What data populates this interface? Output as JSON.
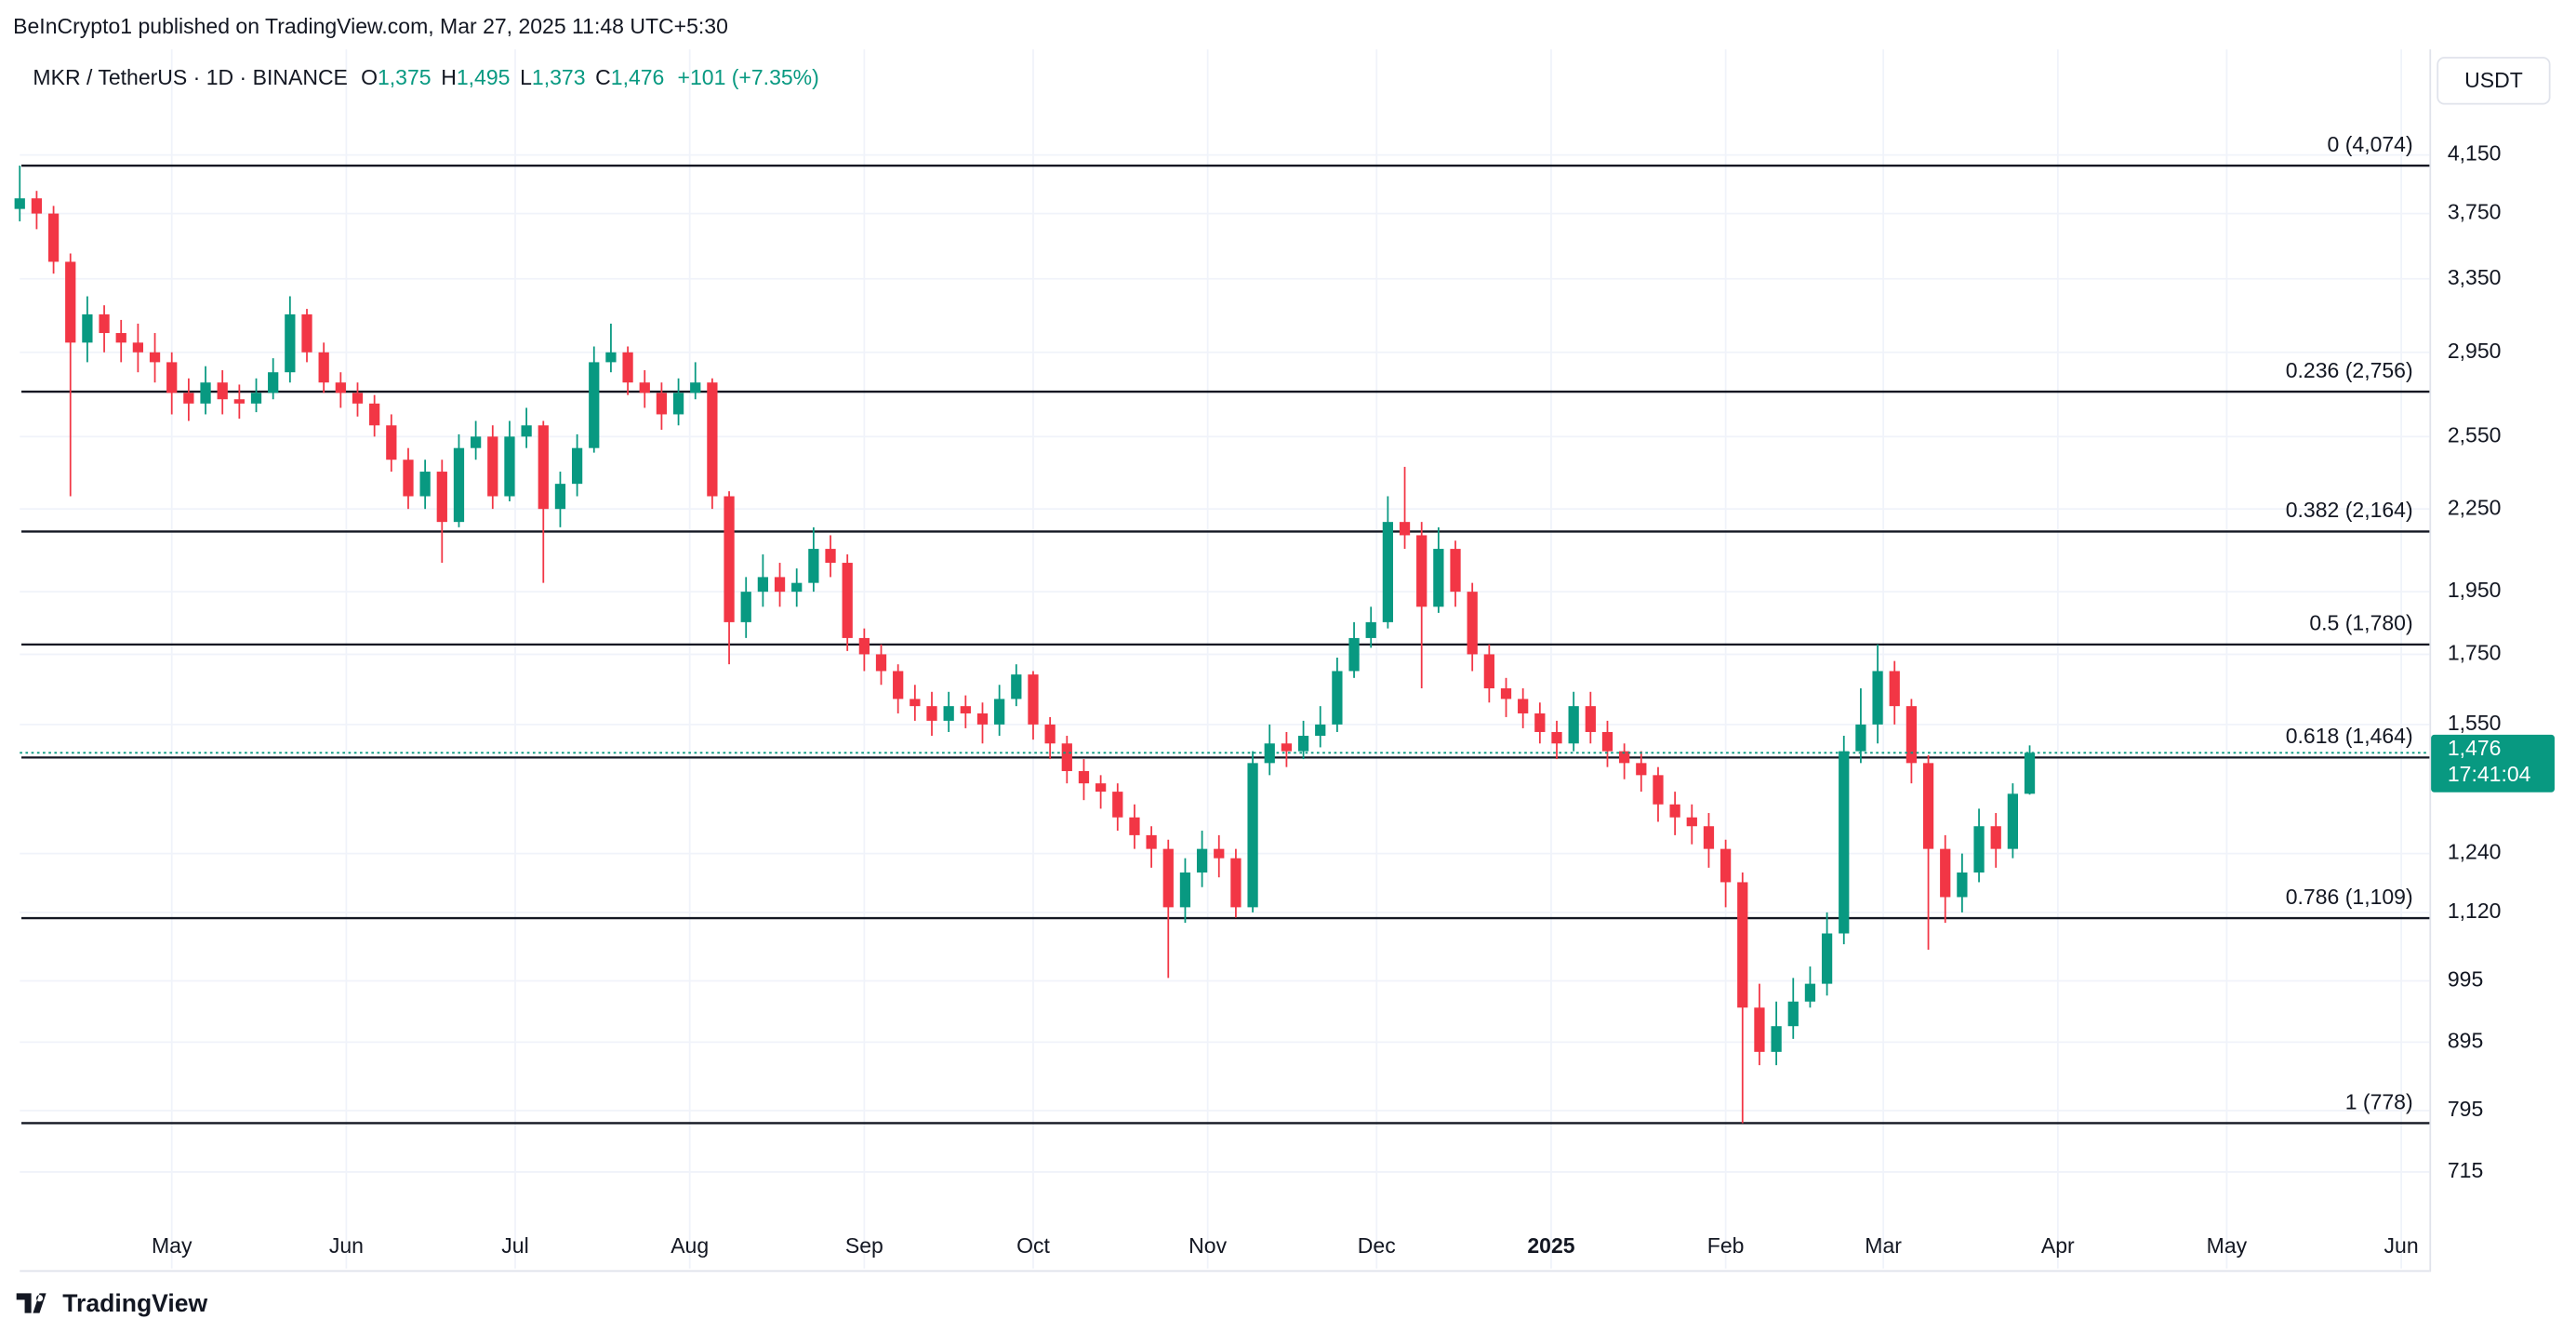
{
  "header": {
    "attribution": "BeInCrypto1 published on TradingView.com, Mar 27, 2025 11:48 UTC+5:30"
  },
  "chart_data": {
    "type": "candlestick",
    "symbol": "MKR / TetherUS · 1D · BINANCE",
    "legend_values": [
      {
        "label": "O",
        "value": "1,375"
      },
      {
        "label": "H",
        "value": "1,495"
      },
      {
        "label": "L",
        "value": "1,373"
      },
      {
        "label": "C",
        "value": "1,476"
      }
    ],
    "change": "+101 (+7.35%)",
    "currency": "USDT",
    "up_color": "#089981",
    "down_color": "#f23645",
    "x": [
      0,
      3,
      6,
      9,
      12,
      15,
      18,
      21,
      24,
      27,
      30,
      33,
      36,
      39,
      42,
      45,
      48,
      51,
      54,
      57,
      60,
      63,
      66,
      69,
      72,
      75,
      78,
      81,
      84,
      87,
      90,
      93,
      96,
      99,
      102,
      105,
      108,
      111,
      114,
      117,
      120,
      123,
      126,
      129,
      132,
      135,
      138,
      141,
      144,
      147,
      150,
      153,
      156,
      159,
      162,
      165,
      168,
      171,
      174,
      177,
      180,
      183,
      186,
      189,
      192,
      195,
      198,
      201,
      204,
      207,
      210,
      213,
      216,
      219,
      222,
      225,
      228,
      231,
      234,
      237,
      240,
      243,
      246,
      249,
      252,
      255,
      258,
      261,
      264,
      267,
      270,
      273,
      276,
      279,
      282,
      285,
      288,
      291,
      294,
      297,
      300,
      303,
      306,
      309,
      312,
      315,
      318,
      321,
      324,
      327,
      330,
      333,
      336,
      339,
      342,
      345,
      348,
      351,
      354,
      357
    ],
    "open": [
      3780,
      3850,
      3750,
      3450,
      3000,
      3150,
      3050,
      3000,
      2950,
      2900,
      2750,
      2700,
      2800,
      2720,
      2700,
      2750,
      2850,
      3150,
      2950,
      2800,
      2750,
      2700,
      2600,
      2450,
      2300,
      2400,
      2200,
      2500,
      2550,
      2300,
      2550,
      2600,
      2250,
      2350,
      2500,
      2900,
      2950,
      2800,
      2750,
      2650,
      2750,
      2800,
      2300,
      1850,
      1950,
      2000,
      1950,
      1980,
      2100,
      2050,
      1800,
      1750,
      1700,
      1620,
      1600,
      1560,
      1600,
      1580,
      1550,
      1620,
      1690,
      1550,
      1500,
      1430,
      1400,
      1380,
      1320,
      1280,
      1250,
      1130,
      1200,
      1250,
      1230,
      1130,
      1450,
      1500,
      1480,
      1520,
      1550,
      1700,
      1800,
      1850,
      2200,
      2150,
      1900,
      2100,
      1950,
      1750,
      1650,
      1620,
      1580,
      1530,
      1500,
      1600,
      1530,
      1480,
      1450,
      1420,
      1350,
      1320,
      1300,
      1250,
      1180,
      950,
      880,
      920,
      960,
      990,
      1080,
      1480,
      1550,
      1700,
      1600,
      1450,
      1250,
      1150,
      1200,
      1300,
      1250,
      1375
    ],
    "high": [
      4074,
      3900,
      3800,
      3500,
      3250,
      3200,
      3120,
      3100,
      3050,
      2950,
      2820,
      2880,
      2860,
      2790,
      2820,
      2920,
      3250,
      3180,
      3000,
      2850,
      2800,
      2740,
      2650,
      2500,
      2450,
      2450,
      2560,
      2620,
      2600,
      2620,
      2680,
      2620,
      2400,
      2560,
      2980,
      3100,
      2980,
      2860,
      2800,
      2820,
      2900,
      2820,
      2320,
      2000,
      2080,
      2050,
      2030,
      2180,
      2150,
      2080,
      1830,
      1780,
      1720,
      1660,
      1640,
      1640,
      1630,
      1610,
      1660,
      1720,
      1700,
      1570,
      1520,
      1460,
      1420,
      1400,
      1350,
      1300,
      1270,
      1230,
      1290,
      1280,
      1250,
      1480,
      1550,
      1530,
      1560,
      1600,
      1740,
      1850,
      1900,
      2300,
      2420,
      2200,
      2180,
      2130,
      1980,
      1780,
      1680,
      1650,
      1610,
      1560,
      1640,
      1640,
      1560,
      1500,
      1480,
      1440,
      1380,
      1350,
      1330,
      1270,
      1200,
      990,
      960,
      1000,
      1020,
      1120,
      1520,
      1650,
      1780,
      1730,
      1620,
      1470,
      1280,
      1240,
      1340,
      1330,
      1400,
      1495
    ],
    "low": [
      3700,
      3650,
      3380,
      2300,
      2900,
      2950,
      2900,
      2850,
      2800,
      2650,
      2620,
      2650,
      2650,
      2630,
      2660,
      2720,
      2800,
      2900,
      2750,
      2680,
      2640,
      2550,
      2400,
      2250,
      2250,
      2050,
      2180,
      2450,
      2250,
      2280,
      2500,
      1980,
      2180,
      2300,
      2480,
      2850,
      2740,
      2680,
      2580,
      2600,
      2720,
      2250,
      1720,
      1800,
      1900,
      1900,
      1900,
      1950,
      2000,
      1760,
      1700,
      1660,
      1580,
      1560,
      1520,
      1530,
      1540,
      1500,
      1520,
      1600,
      1510,
      1460,
      1400,
      1360,
      1340,
      1290,
      1250,
      1210,
      1000,
      1100,
      1170,
      1190,
      1110,
      1120,
      1420,
      1440,
      1460,
      1490,
      1530,
      1680,
      1770,
      1830,
      2100,
      1650,
      1880,
      1900,
      1700,
      1610,
      1570,
      1540,
      1500,
      1460,
      1480,
      1500,
      1440,
      1410,
      1380,
      1310,
      1280,
      1260,
      1210,
      1130,
      778,
      860,
      860,
      900,
      950,
      970,
      1060,
      1450,
      1500,
      1550,
      1400,
      1050,
      1100,
      1120,
      1180,
      1210,
      1230,
      1373
    ],
    "close": [
      3850,
      3750,
      3450,
      3000,
      3150,
      3050,
      3000,
      2950,
      2900,
      2750,
      2700,
      2800,
      2720,
      2700,
      2750,
      2850,
      3150,
      2950,
      2800,
      2750,
      2700,
      2600,
      2450,
      2300,
      2400,
      2200,
      2500,
      2550,
      2300,
      2550,
      2600,
      2250,
      2350,
      2500,
      2900,
      2950,
      2800,
      2750,
      2650,
      2750,
      2800,
      2300,
      1850,
      1950,
      2000,
      1950,
      1980,
      2100,
      2050,
      1800,
      1750,
      1700,
      1620,
      1600,
      1560,
      1600,
      1580,
      1550,
      1620,
      1690,
      1550,
      1500,
      1430,
      1400,
      1380,
      1320,
      1280,
      1250,
      1130,
      1200,
      1250,
      1230,
      1130,
      1450,
      1500,
      1480,
      1520,
      1550,
      1700,
      1800,
      1850,
      2200,
      2150,
      1900,
      2100,
      1950,
      1750,
      1650,
      1620,
      1580,
      1530,
      1500,
      1600,
      1530,
      1480,
      1450,
      1420,
      1350,
      1320,
      1300,
      1250,
      1180,
      950,
      880,
      920,
      960,
      990,
      1080,
      1480,
      1550,
      1700,
      1600,
      1450,
      1250,
      1150,
      1200,
      1300,
      1250,
      1375,
      1476
    ],
    "xlim": [
      0,
      428
    ],
    "xticks": [
      {
        "value": 27,
        "label": "May"
      },
      {
        "value": 58,
        "label": "Jun"
      },
      {
        "value": 88,
        "label": "Jul"
      },
      {
        "value": 119,
        "label": "Aug"
      },
      {
        "value": 150,
        "label": "Sep"
      },
      {
        "value": 180,
        "label": "Oct"
      },
      {
        "value": 211,
        "label": "Nov"
      },
      {
        "value": 241,
        "label": "Dec"
      },
      {
        "value": 272,
        "label": "2025"
      },
      {
        "value": 303,
        "label": "Feb"
      },
      {
        "value": 331,
        "label": "Mar"
      },
      {
        "value": 362,
        "label": "Apr"
      },
      {
        "value": 392,
        "label": "May"
      },
      {
        "value": 423,
        "label": "Jun"
      }
    ],
    "ylim": [
      659,
      4910
    ],
    "log_scale": true,
    "grid": true,
    "yticks": [
      {
        "value": 4150,
        "label": "4,150"
      },
      {
        "value": 3750,
        "label": "3,750"
      },
      {
        "value": 3350,
        "label": "3,350"
      },
      {
        "value": 2950,
        "label": "2,950"
      },
      {
        "value": 2550,
        "label": "2,550"
      },
      {
        "value": 2250,
        "label": "2,250"
      },
      {
        "value": 1950,
        "label": "1,950"
      },
      {
        "value": 1750,
        "label": "1,750"
      },
      {
        "value": 1550,
        "label": "1,550"
      },
      {
        "value": 1240,
        "label": "1,240"
      },
      {
        "value": 1120,
        "label": "1,120"
      },
      995,
      895,
      795,
      715
    ],
    "fib_levels": [
      {
        "value": 4074,
        "label": "0 (4,074)"
      },
      {
        "value": 2756,
        "label": "0.236 (2,756)"
      },
      {
        "value": 2164,
        "label": "0.382 (2,164)"
      },
      {
        "value": 1780,
        "label": "0.5 (1,780)"
      },
      {
        "value": 1464,
        "label": "0.618 (1,464)"
      },
      {
        "value": 1109,
        "label": "0.786 (1,109)"
      },
      {
        "value": 778,
        "label": "1 (778)"
      }
    ],
    "last_price": {
      "value": 1476,
      "label": "1,476",
      "countdown": "17:41:04"
    }
  },
  "footer": {
    "brand": "TradingView"
  }
}
